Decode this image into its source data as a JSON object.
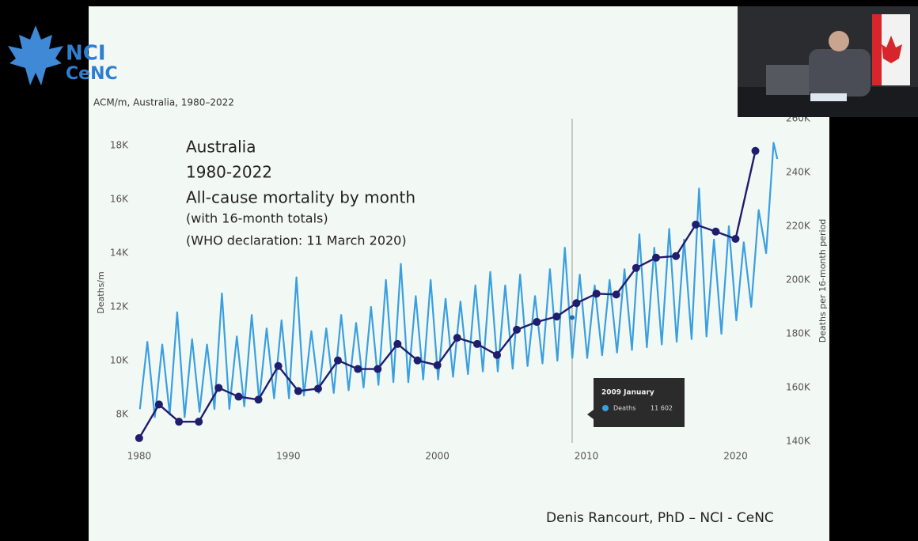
{
  "logo": {
    "line1": "NCI",
    "line2": "CeNC"
  },
  "footer": "Denis Rancourt, PhD  –  NCI - CeNC",
  "chart_data": {
    "type": "line",
    "title": "ACM/m, Australia, 1980–2022",
    "annotations": [
      "Australia",
      "1980-2022",
      "All-cause mortality by month",
      "(with 16-month totals)",
      "(WHO declaration: 11 March 2020)"
    ],
    "y_label": "Deaths/m",
    "y2_label": "Deaths per 16-month period",
    "xlim": [
      1979,
      2023
    ],
    "xticks": [
      1980,
      1990,
      2000,
      2010,
      2020
    ],
    "ylim": [
      6500,
      19000
    ],
    "yticks": [
      {
        "value": 8000,
        "label": "8K"
      },
      {
        "value": 10000,
        "label": "10K"
      },
      {
        "value": 12000,
        "label": "12K"
      },
      {
        "value": 14000,
        "label": "14K"
      },
      {
        "value": 16000,
        "label": "16K"
      },
      {
        "value": 18000,
        "label": "18K"
      }
    ],
    "y2lim": [
      135000,
      260000
    ],
    "y2ticks": [
      {
        "value": 140000,
        "label": "140K"
      },
      {
        "value": 160000,
        "label": "160K"
      },
      {
        "value": 180000,
        "label": "180K"
      },
      {
        "value": 200000,
        "label": "200K"
      },
      {
        "value": 220000,
        "label": "220K"
      },
      {
        "value": 240000,
        "label": "240K"
      },
      {
        "value": 260000,
        "label": "260K"
      }
    ],
    "series": [
      {
        "name": "Deaths",
        "color": "#3a9fe0",
        "x": [
          1980.05,
          1980.55,
          1981.05,
          1981.55,
          1982.05,
          1982.55,
          1983.05,
          1983.55,
          1984.05,
          1984.55,
          1985.05,
          1985.55,
          1986.05,
          1986.55,
          1987.05,
          1987.55,
          1988.05,
          1988.55,
          1989.05,
          1989.55,
          1990.05,
          1990.55,
          1991.05,
          1991.55,
          1992.05,
          1992.55,
          1993.05,
          1993.55,
          1994.05,
          1994.55,
          1995.05,
          1995.55,
          1996.05,
          1996.55,
          1997.05,
          1997.55,
          1998.05,
          1998.55,
          1999.05,
          1999.55,
          2000.05,
          2000.55,
          2001.05,
          2001.55,
          2002.05,
          2002.55,
          2003.05,
          2003.55,
          2004.05,
          2004.55,
          2005.05,
          2005.55,
          2006.05,
          2006.55,
          2007.05,
          2007.55,
          2008.05,
          2008.55,
          2009.05,
          2009.55,
          2010.05,
          2010.55,
          2011.05,
          2011.55,
          2012.05,
          2012.55,
          2013.05,
          2013.55,
          2014.05,
          2014.55,
          2015.05,
          2015.55,
          2016.05,
          2016.55,
          2017.05,
          2017.55,
          2018.05,
          2018.55,
          2019.05,
          2019.55,
          2020.05,
          2020.55,
          2021.05,
          2021.55,
          2022.05,
          2022.55,
          2022.8
        ],
        "values": [
          8200,
          10700,
          7900,
          10600,
          8000,
          11800,
          7900,
          10800,
          8100,
          10600,
          8200,
          12500,
          8200,
          10900,
          8300,
          11700,
          8500,
          11200,
          8600,
          11500,
          8600,
          13100,
          8700,
          11100,
          8800,
          11200,
          8800,
          11700,
          8900,
          11400,
          9000,
          12000,
          9100,
          13000,
          9200,
          13600,
          9200,
          12400,
          9300,
          13000,
          9300,
          12300,
          9400,
          12200,
          9500,
          12800,
          9600,
          13300,
          9600,
          12800,
          9700,
          13200,
          9800,
          12400,
          9900,
          13400,
          10000,
          14200,
          10100,
          13200,
          10100,
          12800,
          10200,
          13000,
          10300,
          13400,
          10400,
          14700,
          10500,
          14200,
          10600,
          14900,
          10700,
          14500,
          10800,
          16400,
          10900,
          14500,
          11000,
          15000,
          11500,
          14400,
          12000,
          15600,
          14000,
          18100,
          17500
        ]
      },
      {
        "color": "#1f1d6e",
        "axis": "y2",
        "x": [
          1980,
          1981.33,
          1982.67,
          1984,
          1985.33,
          1986.67,
          1988,
          1989.33,
          1990.67,
          1992,
          1993.33,
          1994.67,
          1996,
          1997.33,
          1998.67,
          2000,
          2001.33,
          2002.67,
          2004,
          2005.33,
          2006.67,
          2008,
          2009.33,
          2010.67,
          2012,
          2013.33,
          2014.67,
          2016,
          2017.33,
          2018.67,
          2020,
          2021.33
        ],
        "values": [
          141200,
          153700,
          147300,
          147300,
          159900,
          156600,
          155500,
          168000,
          158700,
          159600,
          170100,
          166900,
          166900,
          176200,
          170100,
          168300,
          178500,
          176200,
          172100,
          181500,
          184400,
          186400,
          191400,
          194900,
          194600,
          204500,
          208300,
          208900,
          220600,
          218000,
          215300,
          248000
        ]
      }
    ],
    "tooltip": {
      "title": "2009 January",
      "name": "Deaths",
      "x": 2009.04,
      "value": 11602,
      "value_label": "11 602"
    }
  }
}
